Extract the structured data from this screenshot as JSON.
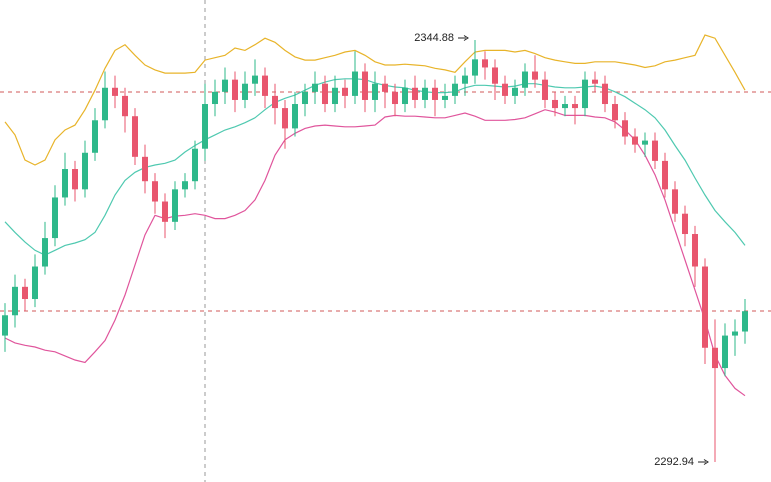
{
  "chart_data": {
    "type": "candlestick",
    "open": [
      2308.5,
      2311.0,
      2314.5,
      2313.0,
      2317.0,
      2320.5,
      2325.5,
      2329.0,
      2326.5,
      2331.0,
      2335.0,
      2339.0,
      2338.0,
      2335.5,
      2330.5,
      2327.5,
      2325.0,
      2322.5,
      2326.5,
      2327.5,
      2331.5,
      2337.0,
      2338.5,
      2340.0,
      2337.5,
      2339.5,
      2340.5,
      2338.0,
      2336.5,
      2334.0,
      2337.0,
      2338.5,
      2339.5,
      2337.0,
      2339.0,
      2338.0,
      2341.0,
      2337.5,
      2339.5,
      2338.5,
      2337.0,
      2339.0,
      2337.5,
      2339.0,
      2337.5,
      2338.0,
      2339.5,
      2340.5,
      2342.5,
      2341.5,
      2339.5,
      2338.0,
      2339.0,
      2341.0,
      2340.0,
      2337.5,
      2336.5,
      2337.0,
      2336.5,
      2340.0,
      2339.5,
      2337.0,
      2335.0,
      2333.0,
      2332.0,
      2332.5,
      2330.0,
      2326.5,
      2323.5,
      2321.0,
      2317.0,
      2307.0,
      2304.5,
      2308.5,
      2309.0
    ],
    "high": [
      2312.5,
      2316.0,
      2315.5,
      2318.5,
      2322.5,
      2327.0,
      2331.0,
      2330.0,
      2332.5,
      2336.5,
      2341.0,
      2340.5,
      2339.0,
      2336.5,
      2332.0,
      2328.5,
      2326.0,
      2327.5,
      2328.5,
      2332.5,
      2339.5,
      2340.0,
      2341.5,
      2341.0,
      2341.0,
      2342.5,
      2341.5,
      2339.5,
      2337.5,
      2338.5,
      2339.5,
      2341.0,
      2340.5,
      2340.5,
      2340.0,
      2343.5,
      2342.0,
      2341.0,
      2340.5,
      2339.5,
      2340.0,
      2340.5,
      2340.0,
      2340.0,
      2339.5,
      2340.5,
      2341.5,
      2344.88,
      2343.5,
      2342.5,
      2340.5,
      2340.0,
      2342.0,
      2343.0,
      2341.0,
      2338.5,
      2338.0,
      2338.0,
      2341.0,
      2341.0,
      2340.5,
      2338.0,
      2336.0,
      2334.0,
      2333.5,
      2333.5,
      2331.0,
      2327.5,
      2324.5,
      2322.0,
      2318.0,
      2310.5,
      2310.0,
      2310.5,
      2313.0
    ],
    "low": [
      2306.5,
      2309.5,
      2311.5,
      2312.0,
      2316.0,
      2319.5,
      2324.5,
      2325.0,
      2325.5,
      2330.0,
      2334.0,
      2336.5,
      2333.5,
      2329.5,
      2326.0,
      2323.5,
      2320.5,
      2321.5,
      2325.5,
      2326.5,
      2330.0,
      2335.5,
      2337.0,
      2336.0,
      2336.5,
      2338.0,
      2336.5,
      2334.5,
      2331.5,
      2333.0,
      2335.5,
      2337.0,
      2336.0,
      2336.0,
      2336.5,
      2337.0,
      2336.0,
      2336.0,
      2336.5,
      2335.5,
      2336.0,
      2336.5,
      2336.5,
      2335.5,
      2336.5,
      2337.0,
      2338.0,
      2339.5,
      2340.0,
      2337.5,
      2337.0,
      2337.0,
      2338.0,
      2339.0,
      2336.5,
      2335.5,
      2335.5,
      2334.5,
      2335.5,
      2338.5,
      2336.0,
      2334.0,
      2332.0,
      2331.0,
      2330.5,
      2329.0,
      2325.5,
      2322.5,
      2319.5,
      2314.5,
      2305.0,
      2292.94,
      2303.5,
      2306.0,
      2307.5
    ],
    "close": [
      2311.0,
      2314.5,
      2313.0,
      2317.0,
      2320.5,
      2325.5,
      2329.0,
      2326.5,
      2331.0,
      2335.0,
      2339.0,
      2338.0,
      2335.5,
      2330.5,
      2327.5,
      2325.0,
      2322.5,
      2326.5,
      2327.5,
      2331.5,
      2337.0,
      2338.5,
      2340.0,
      2337.5,
      2339.5,
      2340.5,
      2338.0,
      2336.5,
      2334.0,
      2337.0,
      2338.5,
      2339.5,
      2337.0,
      2339.0,
      2338.0,
      2341.0,
      2337.5,
      2339.5,
      2338.5,
      2337.0,
      2339.0,
      2337.5,
      2339.0,
      2337.5,
      2338.0,
      2339.5,
      2340.5,
      2342.5,
      2341.5,
      2339.5,
      2338.0,
      2339.0,
      2341.0,
      2340.0,
      2337.5,
      2336.5,
      2337.0,
      2336.5,
      2340.0,
      2339.5,
      2337.0,
      2335.0,
      2333.0,
      2332.0,
      2332.5,
      2330.0,
      2326.5,
      2323.5,
      2321.0,
      2317.0,
      2307.0,
      2304.5,
      2308.5,
      2309.0,
      2311.5
    ],
    "up_color": "#2eb88a",
    "down_color": "#e8566e",
    "bands": [
      {
        "color": "#e8b42a",
        "values": [
          2334.8,
          2333.2,
          2330.1,
          2329.5,
          2330.1,
          2332.6,
          2333.8,
          2334.4,
          2336.3,
          2338.7,
          2341.4,
          2343.6,
          2344.3,
          2343.0,
          2341.8,
          2341.2,
          2340.8,
          2340.8,
          2340.8,
          2340.9,
          2342.4,
          2342.7,
          2343.0,
          2343.9,
          2343.6,
          2344.3,
          2345.1,
          2344.6,
          2343.6,
          2342.8,
          2342.4,
          2342.4,
          2342.7,
          2343.0,
          2343.4,
          2343.6,
          2343.0,
          2342.2,
          2341.8,
          2341.8,
          2341.9,
          2341.8,
          2341.7,
          2341.4,
          2341.2,
          2340.9,
          2342.2,
          2343.4,
          2343.6,
          2343.6,
          2343.6,
          2343.4,
          2343.6,
          2343.2,
          2342.7,
          2342.4,
          2342.2,
          2342.0,
          2342.0,
          2342.2,
          2342.2,
          2342.2,
          2342.0,
          2341.8,
          2341.5,
          2341.7,
          2342.2,
          2342.4,
          2342.7,
          2343.0,
          2345.5,
          2345.1,
          2343.0,
          2340.9,
          2338.7
        ]
      },
      {
        "color": "#4fc9b0",
        "values": [
          2322.5,
          2321.2,
          2320.0,
          2319.0,
          2318.4,
          2319.0,
          2319.6,
          2319.9,
          2320.3,
          2321.2,
          2323.3,
          2325.8,
          2327.6,
          2328.6,
          2329.2,
          2329.5,
          2329.7,
          2330.1,
          2331.1,
          2331.9,
          2332.6,
          2333.2,
          2333.8,
          2334.2,
          2334.7,
          2335.3,
          2336.3,
          2337.2,
          2337.7,
          2338.1,
          2338.7,
          2339.3,
          2339.7,
          2340.0,
          2340.1,
          2340.1,
          2340.0,
          2339.6,
          2339.3,
          2339.1,
          2339.0,
          2338.7,
          2338.5,
          2338.4,
          2338.4,
          2338.5,
          2339.0,
          2339.3,
          2339.3,
          2339.2,
          2339.1,
          2339.2,
          2339.5,
          2339.5,
          2339.3,
          2339.1,
          2339.0,
          2339.0,
          2339.1,
          2339.2,
          2339.0,
          2338.5,
          2337.9,
          2337.1,
          2336.3,
          2335.3,
          2333.8,
          2331.9,
          2330.1,
          2327.9,
          2325.8,
          2323.9,
          2322.5,
          2321.2,
          2319.6
        ]
      },
      {
        "color": "#e0559c",
        "values": [
          2308.2,
          2307.6,
          2307.3,
          2307.1,
          2306.7,
          2306.5,
          2306.0,
          2305.5,
          2305.2,
          2306.5,
          2307.9,
          2310.4,
          2313.5,
          2317.2,
          2320.9,
          2323.3,
          2322.9,
          2323.2,
          2323.3,
          2323.5,
          2323.3,
          2322.9,
          2322.9,
          2323.3,
          2323.9,
          2325.2,
          2327.6,
          2330.7,
          2332.6,
          2333.4,
          2334.0,
          2334.3,
          2334.4,
          2334.3,
          2334.2,
          2334.2,
          2334.3,
          2334.4,
          2335.4,
          2335.6,
          2335.5,
          2335.5,
          2335.4,
          2335.3,
          2335.3,
          2335.6,
          2335.9,
          2335.5,
          2335.0,
          2335.0,
          2335.0,
          2335.1,
          2335.3,
          2335.8,
          2336.3,
          2336.0,
          2335.6,
          2335.6,
          2335.6,
          2335.4,
          2335.3,
          2334.8,
          2333.8,
          2332.6,
          2330.7,
          2328.3,
          2325.2,
          2321.5,
          2317.8,
          2314.1,
          2310.4,
          2306.1,
          2303.6,
          2302.0,
          2301.1
        ]
      }
    ]
  }
}
